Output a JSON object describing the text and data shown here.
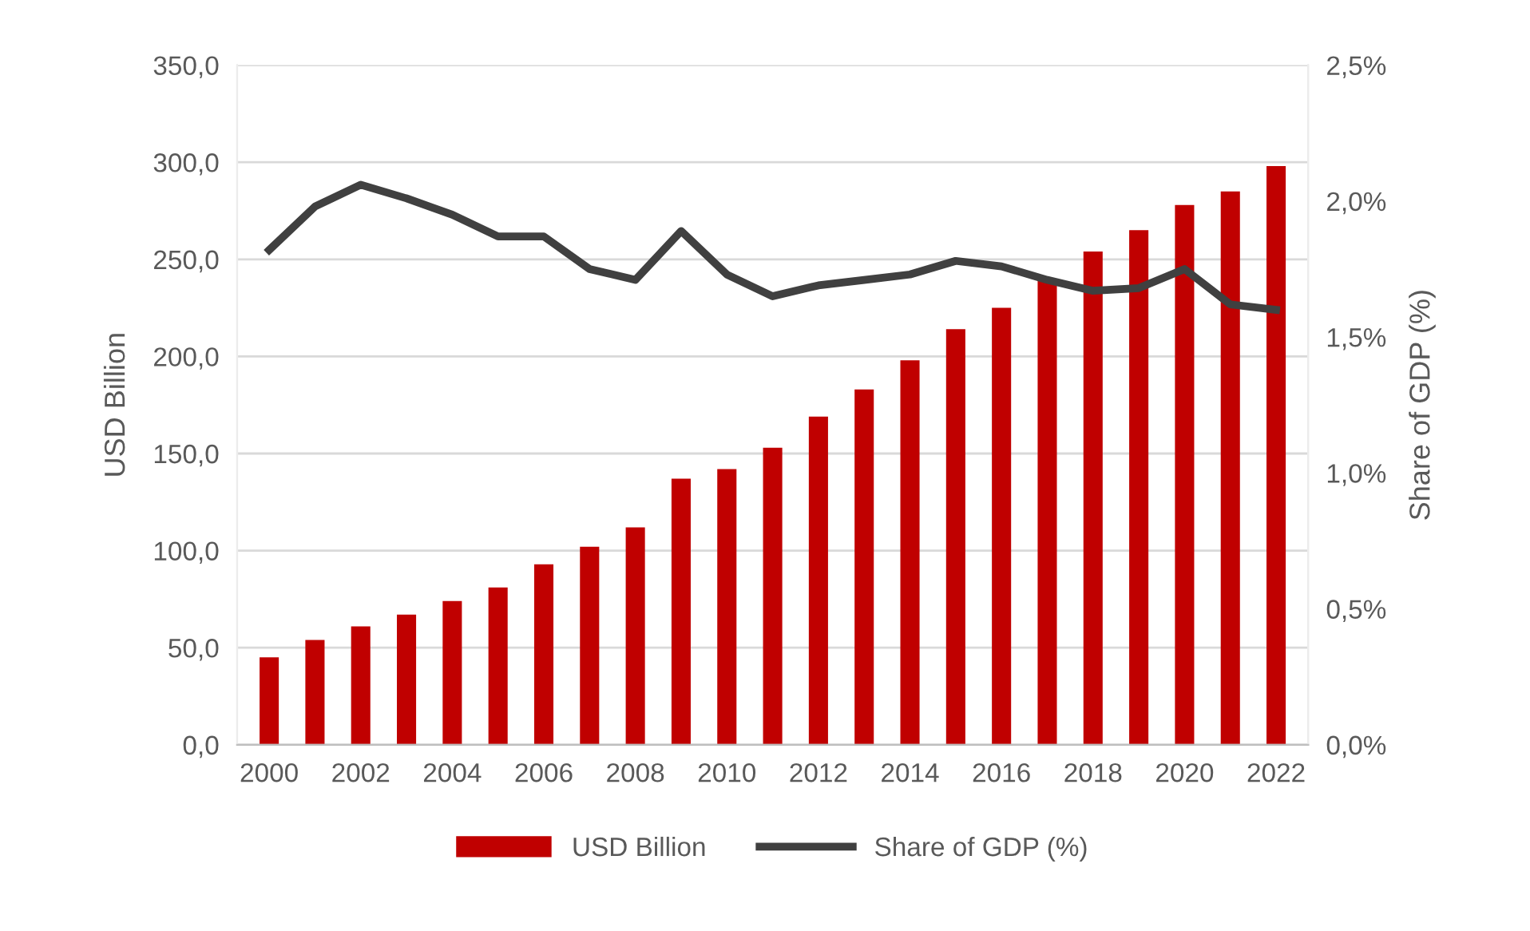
{
  "chart_data": {
    "type": "bar",
    "categories": [
      "2000",
      null,
      "2002",
      null,
      "2004",
      null,
      "2006",
      null,
      "2008",
      null,
      "2010",
      null,
      "2012",
      null,
      "2014",
      null,
      "2016",
      null,
      "2018",
      null,
      "2020",
      null,
      "2022"
    ],
    "series": [
      {
        "name": "USD Billion",
        "color": "#c00000",
        "values": [
          45,
          54,
          61,
          67,
          74,
          81,
          93,
          102,
          112,
          137,
          142,
          153,
          169,
          183,
          198,
          214,
          225,
          240,
          254,
          265,
          278,
          285,
          298
        ]
      },
      {
        "name": "Share of GDP (%)",
        "type": "line",
        "axis": "y2",
        "color": "#404040",
        "values": [
          1.82,
          1.98,
          2.06,
          2.01,
          1.95,
          1.87,
          1.87,
          1.75,
          1.71,
          1.89,
          1.73,
          1.65,
          1.69,
          1.71,
          1.73,
          1.78,
          1.76,
          1.71,
          1.67,
          1.68,
          1.75,
          1.62,
          1.6
        ]
      }
    ],
    "ylabel": "USD Billion",
    "y2label": "Share of GDP (%)",
    "ylim": [
      0,
      350
    ],
    "yticks": [
      {
        "value": 0,
        "label": "0,0"
      },
      {
        "value": 50,
        "label": "50,0"
      },
      {
        "value": 100,
        "label": "100,0"
      },
      {
        "value": 150,
        "label": "150,0"
      },
      {
        "value": 200,
        "label": "200,0"
      },
      {
        "value": 250,
        "label": "250,0"
      },
      {
        "value": 300,
        "label": "300,0"
      },
      {
        "value": 350,
        "label": "350,0"
      }
    ],
    "y2lim": [
      0,
      2.5
    ],
    "y2ticks": [
      {
        "value": 0,
        "label": "0,0%"
      },
      {
        "value": 0.5,
        "label": "0,5%"
      },
      {
        "value": 1.0,
        "label": "1,0%"
      },
      {
        "value": 1.5,
        "label": "1,5%"
      },
      {
        "value": 2.0,
        "label": "2,0%"
      },
      {
        "value": 2.5,
        "label": "2,5%"
      }
    ],
    "grid": "y",
    "legend": "bottom",
    "marker": "none",
    "line_style": "solid"
  }
}
